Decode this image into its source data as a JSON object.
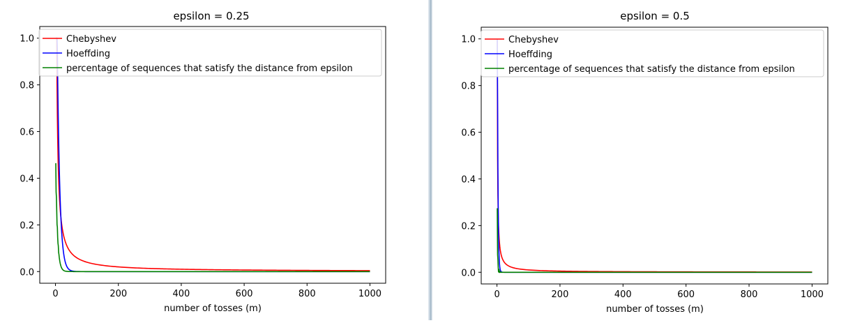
{
  "chart_data": [
    {
      "type": "line",
      "title": "epsilon = 0.25",
      "xlabel": "number of tosses (m)",
      "ylabel": "",
      "xlim": [
        -50,
        1050
      ],
      "ylim": [
        -0.05,
        1.05
      ],
      "xticks": [
        "0",
        "200",
        "400",
        "600",
        "800",
        "1000"
      ],
      "yticks": [
        "0.0",
        "0.2",
        "0.4",
        "0.6",
        "0.8",
        "1.0"
      ],
      "legend_position": "top-right",
      "epsilon": 0.25,
      "series": [
        {
          "name": "Chebyshev",
          "color": "#ff0000",
          "kind": "chebyshev"
        },
        {
          "name": "Hoeffding",
          "color": "#0000ff",
          "kind": "hoeffding"
        },
        {
          "name": " percentage of sequences that satisfy the distance from epsilon",
          "color": "#008000",
          "kind": "empirical"
        }
      ]
    },
    {
      "type": "line",
      "title": "epsilon = 0.5",
      "xlabel": "number of tosses (m)",
      "ylabel": "",
      "xlim": [
        -50,
        1050
      ],
      "ylim": [
        -0.05,
        1.05
      ],
      "xticks": [
        "0",
        "200",
        "400",
        "600",
        "800",
        "1000"
      ],
      "yticks": [
        "0.0",
        "0.2",
        "0.4",
        "0.6",
        "0.8",
        "1.0"
      ],
      "legend_position": "top-right",
      "epsilon": 0.5,
      "series": [
        {
          "name": "Chebyshev",
          "color": "#ff0000",
          "kind": "chebyshev"
        },
        {
          "name": "Hoeffding",
          "color": "#0000ff",
          "kind": "hoeffding"
        },
        {
          "name": " percentage of sequences that satisfy the distance from epsilon",
          "color": "#008000",
          "kind": "empirical"
        }
      ]
    }
  ]
}
